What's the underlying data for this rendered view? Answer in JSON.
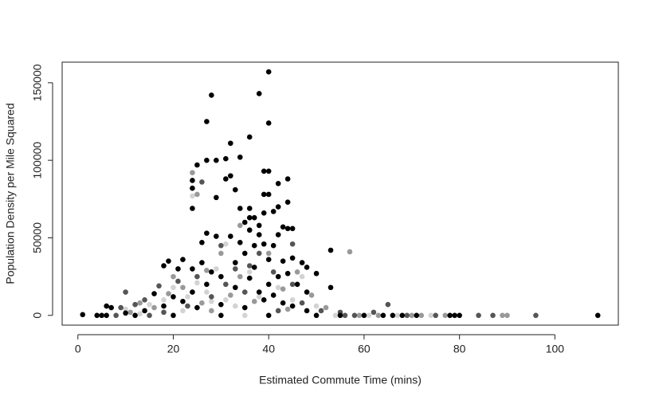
{
  "chart_data": {
    "type": "scatter",
    "x_label": "Estimated Commute Time (mins)",
    "y_label": "Population Density per Mile Squared",
    "xlim": [
      -3.3,
      113.3
    ],
    "ylim": [
      -6280,
      163280
    ],
    "xticks": [
      0,
      20,
      40,
      60,
      80,
      100
    ],
    "yticks": [
      0,
      50000,
      100000,
      150000
    ],
    "series": [
      {
        "color": "#d3d3d3",
        "x": [
          24,
          31,
          29,
          25,
          20,
          15,
          10,
          13,
          18,
          23,
          28,
          33,
          38,
          45,
          50,
          54,
          61,
          67,
          74,
          35,
          42,
          47,
          27,
          31,
          36,
          22
        ],
        "values": [
          77000,
          46000,
          30000,
          21000,
          18000,
          7000,
          4000,
          1000,
          10000,
          12000,
          9000,
          6000,
          12000,
          10000,
          6000,
          0,
          0,
          0,
          0,
          0,
          18000,
          25000,
          15000,
          10000,
          28000,
          3000
        ]
      },
      {
        "color": "#999999",
        "x": [
          24,
          25,
          57,
          34,
          30,
          27,
          22,
          16,
          11,
          13,
          19,
          26,
          32,
          37,
          43,
          49,
          52,
          59,
          63,
          70,
          77,
          89,
          90,
          72,
          44,
          28,
          34,
          40,
          46,
          20
        ],
        "values": [
          92000,
          78000,
          41000,
          58000,
          40000,
          29000,
          18000,
          5000,
          2000,
          8000,
          14000,
          8000,
          13000,
          9000,
          17000,
          13000,
          5000,
          0,
          0,
          0,
          0,
          0,
          0,
          0,
          4000,
          3000,
          25000,
          40000,
          28000,
          25000
        ]
      },
      {
        "color": "#555555",
        "x": [
          26,
          45,
          30,
          38,
          33,
          25,
          21,
          17,
          14,
          12,
          9,
          10,
          28,
          35,
          42,
          47,
          51,
          55,
          58,
          62,
          65,
          69,
          75,
          84,
          87,
          96,
          56,
          8,
          15,
          23,
          31,
          36,
          41,
          45,
          18
        ],
        "values": [
          86000,
          46000,
          45000,
          40000,
          30000,
          25000,
          22000,
          19000,
          10000,
          7000,
          5000,
          15000,
          12000,
          15000,
          3000,
          8000,
          3000,
          2000,
          0,
          2000,
          7000,
          0,
          0,
          0,
          0,
          0,
          0,
          0,
          0,
          6000,
          20000,
          32000,
          28000,
          20000,
          2000
        ]
      },
      {
        "color": "#000000",
        "x": [
          27,
          28,
          38,
          40,
          40,
          32,
          36,
          34,
          27,
          29,
          31,
          24,
          24,
          25,
          32,
          31,
          39,
          40,
          33,
          39,
          40,
          42,
          44,
          44,
          24,
          29,
          34,
          36,
          36,
          37,
          41,
          42,
          39,
          43,
          44,
          45,
          27,
          26,
          32,
          29,
          36,
          38,
          34,
          39,
          41,
          42,
          53,
          35,
          40,
          43,
          45,
          47,
          48,
          50,
          53,
          33,
          37,
          22,
          19,
          18,
          21,
          26,
          24,
          28,
          30,
          36,
          40,
          42,
          38,
          41,
          39,
          43,
          33,
          27,
          24,
          20,
          16,
          18,
          22,
          25,
          30,
          35,
          45,
          48,
          14,
          10,
          6,
          7,
          1,
          4,
          5,
          6,
          12,
          20,
          30,
          40,
          50,
          55,
          60,
          64,
          66,
          68,
          71,
          78,
          79,
          80,
          109,
          48,
          46,
          44,
          37,
          35,
          38
        ],
        "values": [
          125000,
          142000,
          143000,
          157000,
          124000,
          111000,
          115000,
          102000,
          100000,
          100000,
          101000,
          87000,
          82000,
          97000,
          90000,
          88000,
          93000,
          93000,
          81000,
          78000,
          78000,
          85000,
          88000,
          73000,
          69000,
          76000,
          69000,
          69000,
          63000,
          63000,
          67000,
          70000,
          66000,
          57000,
          56000,
          56000,
          53000,
          47000,
          51000,
          51000,
          55000,
          52000,
          47000,
          46000,
          45000,
          52000,
          42000,
          40000,
          36000,
          35000,
          37000,
          34000,
          31000,
          27000,
          18000,
          34000,
          31000,
          36000,
          35000,
          32000,
          30000,
          34000,
          30000,
          28000,
          25000,
          24000,
          20000,
          25000,
          15000,
          13000,
          10000,
          8000,
          18000,
          20000,
          15000,
          12000,
          14000,
          6000,
          9000,
          5000,
          7000,
          5000,
          6000,
          3000,
          3000,
          1500,
          6000,
          5000,
          500,
          0,
          0,
          0,
          0,
          0,
          0,
          0,
          0,
          0,
          0,
          0,
          0,
          0,
          0,
          0,
          0,
          0,
          0,
          15000,
          20000,
          27000,
          45000,
          60000,
          58000
        ]
      }
    ]
  }
}
